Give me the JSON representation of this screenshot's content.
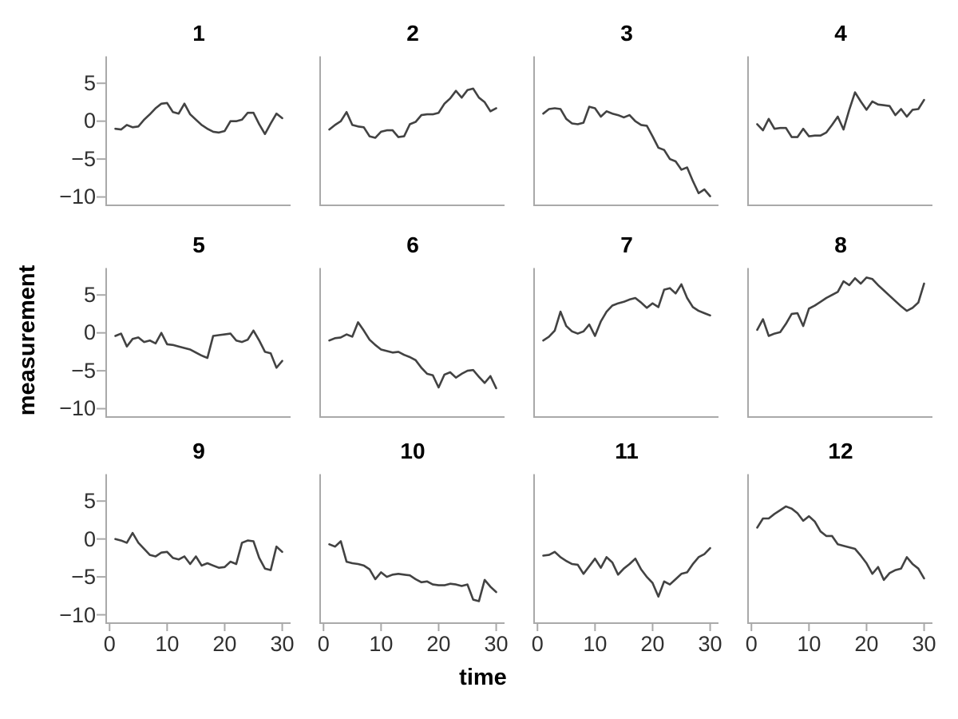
{
  "labels": {
    "x_axis_title": "time",
    "y_axis_title": "measurement"
  },
  "colors": {
    "background": "#ffffff",
    "line": "#424242",
    "axis": "#a9a9a9",
    "tick_label": "#303030",
    "title": "#000000"
  },
  "chart_data": {
    "type": "line",
    "layout": "facet grid 4 columns x 3 rows, shared axes, no gridlines, no legend",
    "xlabel": "time",
    "ylabel": "measurement",
    "x_domain": [
      -0.45,
      31.45
    ],
    "y_domain": [
      -11.1,
      8.5
    ],
    "x_ticks": {
      "values": [
        0,
        10,
        20,
        30
      ],
      "labels": [
        "0",
        "10",
        "20",
        "30"
      ]
    },
    "y_ticks": {
      "values": [
        5,
        0,
        -5,
        -10
      ],
      "labels": [
        "5",
        "0",
        "−5",
        "−10"
      ]
    },
    "x": [
      1,
      2,
      3,
      4,
      5,
      6,
      7,
      8,
      9,
      10,
      11,
      12,
      13,
      14,
      15,
      16,
      17,
      18,
      19,
      20,
      21,
      22,
      23,
      24,
      25,
      26,
      27,
      28,
      29,
      30
    ],
    "facets": [
      {
        "label": "1",
        "values": [
          -1.0,
          -1.1,
          -0.5,
          -0.8,
          -0.7,
          0.2,
          0.9,
          1.7,
          2.3,
          2.4,
          1.2,
          1.0,
          2.3,
          0.9,
          0.2,
          -0.5,
          -1.0,
          -1.4,
          -1.5,
          -1.3,
          0.0,
          0.0,
          0.2,
          1.1,
          1.1,
          -0.4,
          -1.7,
          -0.3,
          1.0,
          0.4
        ]
      },
      {
        "label": "2",
        "values": [
          -1.1,
          -0.5,
          0.0,
          1.2,
          -0.5,
          -0.7,
          -0.8,
          -2.0,
          -2.2,
          -1.4,
          -1.2,
          -1.2,
          -2.1,
          -2.0,
          -0.4,
          -0.1,
          0.8,
          0.9,
          0.9,
          1.1,
          2.3,
          3.0,
          4.0,
          3.1,
          4.1,
          4.3,
          3.1,
          2.5,
          1.3,
          1.7
        ]
      },
      {
        "label": "3",
        "values": [
          1.0,
          1.6,
          1.7,
          1.6,
          0.3,
          -0.3,
          -0.4,
          -0.2,
          1.9,
          1.7,
          0.6,
          1.3,
          1.0,
          0.8,
          0.5,
          0.8,
          0.0,
          -0.5,
          -0.6,
          -2.0,
          -3.5,
          -3.8,
          -5.0,
          -5.3,
          -6.4,
          -6.1,
          -7.9,
          -9.5,
          -9.0,
          -9.9
        ]
      },
      {
        "label": "4",
        "values": [
          -0.4,
          -1.2,
          0.3,
          -1.0,
          -0.9,
          -0.9,
          -2.1,
          -2.1,
          -1.0,
          -2.0,
          -1.9,
          -1.9,
          -1.5,
          -0.5,
          0.6,
          -1.1,
          1.5,
          3.8,
          2.6,
          1.5,
          2.6,
          2.2,
          2.1,
          2.0,
          0.8,
          1.6,
          0.6,
          1.5,
          1.6,
          2.8
        ]
      },
      {
        "label": "5",
        "values": [
          -0.4,
          -0.1,
          -1.8,
          -0.8,
          -0.6,
          -1.2,
          -1.0,
          -1.4,
          0.0,
          -1.5,
          -1.6,
          -1.8,
          -2.0,
          -2.2,
          -2.6,
          -3.0,
          -3.3,
          -0.4,
          -0.3,
          -0.2,
          -0.1,
          -1.0,
          -1.2,
          -0.9,
          0.3,
          -1.0,
          -2.5,
          -2.7,
          -4.6,
          -3.7
        ]
      },
      {
        "label": "6",
        "values": [
          -1.0,
          -0.7,
          -0.6,
          -0.2,
          -0.5,
          1.4,
          0.3,
          -0.9,
          -1.6,
          -2.2,
          -2.4,
          -2.6,
          -2.5,
          -2.9,
          -3.2,
          -3.6,
          -4.6,
          -5.4,
          -5.6,
          -7.2,
          -5.5,
          -5.2,
          -5.9,
          -5.4,
          -5.0,
          -4.9,
          -5.8,
          -6.6,
          -5.7,
          -7.3
        ]
      },
      {
        "label": "7",
        "values": [
          -1.0,
          -0.5,
          0.3,
          2.8,
          0.9,
          0.2,
          -0.1,
          0.2,
          1.1,
          -0.4,
          1.5,
          2.8,
          3.6,
          3.9,
          4.1,
          4.4,
          4.6,
          4.0,
          3.3,
          3.9,
          3.4,
          5.7,
          5.9,
          5.2,
          6.4,
          4.6,
          3.4,
          2.9,
          2.6,
          2.3
        ]
      },
      {
        "label": "8",
        "values": [
          0.4,
          1.8,
          -0.4,
          -0.1,
          0.1,
          1.2,
          2.5,
          2.6,
          0.9,
          3.2,
          3.6,
          4.1,
          4.6,
          5.0,
          5.4,
          6.8,
          6.3,
          7.2,
          6.5,
          7.3,
          7.1,
          6.3,
          5.6,
          4.9,
          4.2,
          3.5,
          2.9,
          3.3,
          4.0,
          6.5
        ]
      },
      {
        "label": "9",
        "values": [
          0.0,
          -0.2,
          -0.5,
          0.8,
          -0.5,
          -1.3,
          -2.1,
          -2.3,
          -1.8,
          -1.7,
          -2.5,
          -2.7,
          -2.3,
          -3.3,
          -2.3,
          -3.5,
          -3.2,
          -3.5,
          -3.8,
          -3.7,
          -3.0,
          -3.3,
          -0.5,
          -0.2,
          -0.3,
          -2.5,
          -3.9,
          -4.1,
          -1.0,
          -1.7
        ]
      },
      {
        "label": "10",
        "values": [
          -0.7,
          -1.0,
          -0.3,
          -3.0,
          -3.2,
          -3.3,
          -3.5,
          -4.0,
          -5.3,
          -4.4,
          -5.0,
          -4.7,
          -4.6,
          -4.7,
          -4.8,
          -5.3,
          -5.7,
          -5.6,
          -6.0,
          -6.1,
          -6.1,
          -5.9,
          -6.0,
          -6.2,
          -6.0,
          -8.0,
          -8.2,
          -5.4,
          -6.3,
          -7.0
        ]
      },
      {
        "label": "11",
        "values": [
          -2.2,
          -2.1,
          -1.7,
          -2.4,
          -2.9,
          -3.3,
          -3.4,
          -4.6,
          -3.6,
          -2.6,
          -3.8,
          -2.4,
          -3.1,
          -4.7,
          -3.9,
          -3.3,
          -2.6,
          -4.0,
          -5.0,
          -5.8,
          -7.6,
          -5.6,
          -6.0,
          -5.3,
          -4.6,
          -4.4,
          -3.3,
          -2.4,
          -2.0,
          -1.2
        ]
      },
      {
        "label": "12",
        "values": [
          1.5,
          2.7,
          2.7,
          3.3,
          3.8,
          4.3,
          4.0,
          3.4,
          2.4,
          3.0,
          2.3,
          1.0,
          0.4,
          0.4,
          -0.7,
          -0.9,
          -1.1,
          -1.3,
          -2.2,
          -3.2,
          -4.6,
          -3.7,
          -5.4,
          -4.5,
          -4.1,
          -3.9,
          -2.4,
          -3.3,
          -3.9,
          -5.2
        ]
      }
    ]
  }
}
